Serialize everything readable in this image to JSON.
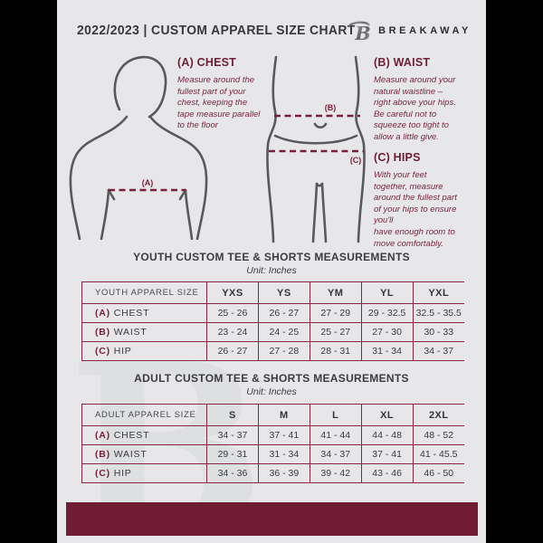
{
  "header": {
    "title": "2022/2023  |  CUSTOM APPAREL SIZE CHART",
    "brand": "BREAKAWAY",
    "logo_glyph": "B"
  },
  "measurement_guide": {
    "chest": {
      "marker": "(A)",
      "heading": "(A) CHEST",
      "body": "Measure around the\nfullest part of your\nchest, keeping the\ntape measure parallel\nto the floor"
    },
    "waist": {
      "marker": "(B)",
      "heading": "(B) WAIST",
      "body": "Measure around your\nnatural waistline –\nright above your hips.\nBe careful not to\nsqueeze too tight to\nallow a little give."
    },
    "hips": {
      "marker": "(C)",
      "heading": "(C) HIPS",
      "body": "With your feet\ntogether, measure\naround the fullest part\nof your hips to ensure\nyou'll\nhave enough room to\nmove comfortably."
    }
  },
  "watermark_glyph": "B",
  "colors": {
    "accent_maroon": "#6e1d38",
    "table_border": "#8a2444",
    "footer_bar": "#6f1c34",
    "figure_gray": "#58595b",
    "page_background": "#e7e7e9"
  },
  "tables": [
    {
      "title": "YOUTH CUSTOM TEE & SHORTS MEASUREMENTS",
      "unit": "Unit: Inches",
      "columns": [
        "YOUTH APPAREL SIZE",
        "YXS",
        "YS",
        "YM",
        "YL",
        "YXL"
      ],
      "rows": [
        {
          "prefix": "(A)",
          "label": "CHEST",
          "values": [
            "25 - 26",
            "26 - 27",
            "27 - 29",
            "29 - 32.5",
            "32.5 - 35.5"
          ]
        },
        {
          "prefix": "(B)",
          "label": "WAIST",
          "values": [
            "23 - 24",
            "24 - 25",
            "25 - 27",
            "27 - 30",
            "30 - 33"
          ]
        },
        {
          "prefix": "(C)",
          "label": "HIP",
          "values": [
            "26 - 27",
            "27 - 28",
            "28 - 31",
            "31 - 34",
            "34 - 37"
          ]
        }
      ]
    },
    {
      "title": "ADULT CUSTOM TEE & SHORTS MEASUREMENTS",
      "unit": "Unit: Inches",
      "columns": [
        "ADULT APPAREL SIZE",
        "S",
        "M",
        "L",
        "XL",
        "2XL"
      ],
      "rows": [
        {
          "prefix": "(A)",
          "label": "CHEST",
          "values": [
            "34 - 37",
            "37 - 41",
            "41 - 44",
            "44 - 48",
            "48 - 52"
          ]
        },
        {
          "prefix": "(B)",
          "label": "WAIST",
          "values": [
            "29 - 31",
            "31 - 34",
            "34 - 37",
            "37 - 41",
            "41 - 45.5"
          ]
        },
        {
          "prefix": "(C)",
          "label": "HIP",
          "values": [
            "34 - 36",
            "36 - 39",
            "39 - 42",
            "43 - 46",
            "46 - 50"
          ]
        }
      ]
    }
  ]
}
